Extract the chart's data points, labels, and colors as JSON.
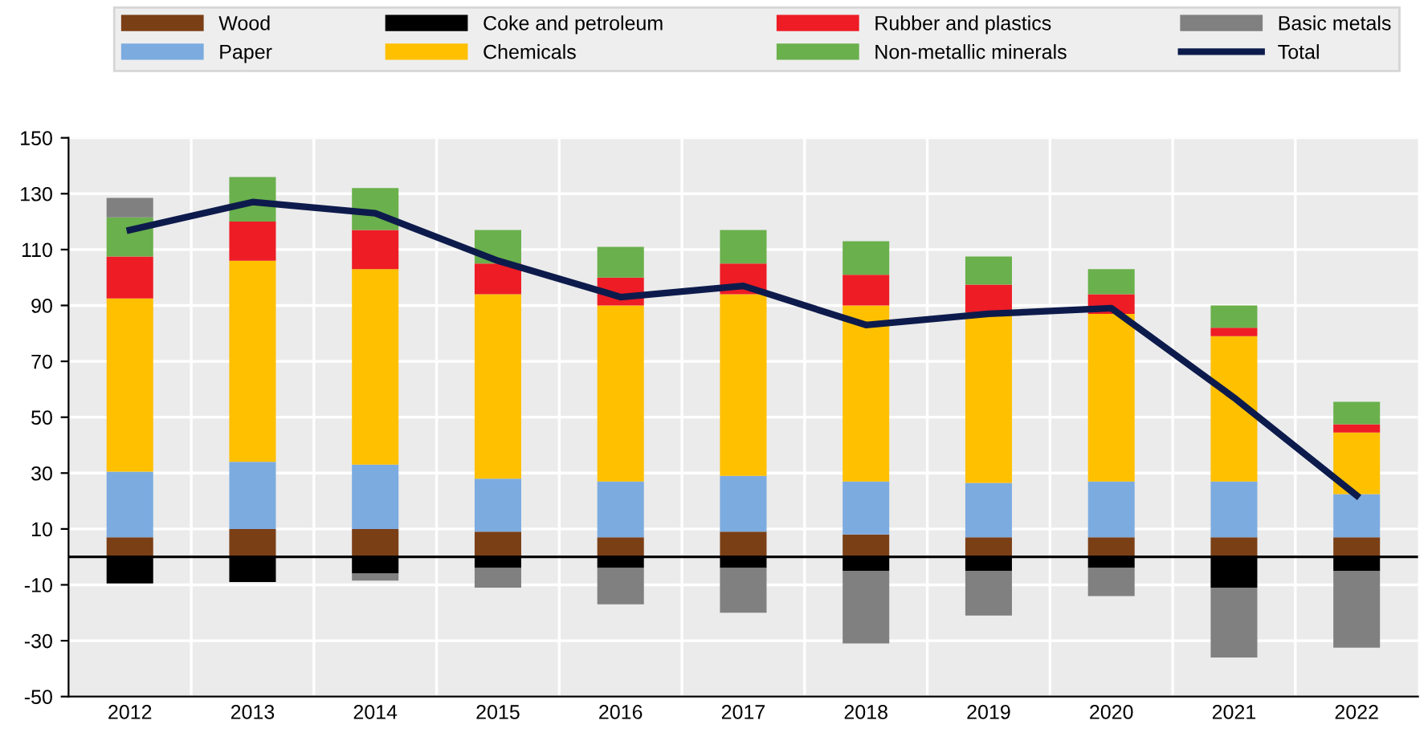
{
  "chart_data": {
    "type": "bar",
    "stacked": true,
    "categories": [
      "2012",
      "2013",
      "2014",
      "2015",
      "2016",
      "2017",
      "2018",
      "2019",
      "2020",
      "2021",
      "2022"
    ],
    "series": [
      {
        "name": "Wood",
        "color": "#7b3f16",
        "values": [
          7,
          10,
          10,
          9,
          7,
          9,
          8,
          7,
          7,
          7,
          7
        ]
      },
      {
        "name": "Paper",
        "color": "#7cabe0",
        "values": [
          23.5,
          24,
          23,
          19,
          20,
          20,
          19,
          19.5,
          20,
          20,
          15.5
        ]
      },
      {
        "name": "Coke and petroleum",
        "color": "#000000",
        "values": [
          -9.5,
          -9,
          -6,
          -4,
          -4,
          -4,
          -5,
          -5,
          -4,
          -11,
          -5
        ]
      },
      {
        "name": "Chemicals",
        "color": "#ffc000",
        "values": [
          62,
          72,
          70,
          66,
          63,
          65,
          63,
          61,
          60,
          52,
          22
        ]
      },
      {
        "name": "Rubber and plastics",
        "color": "#ee1c25",
        "values": [
          15,
          14,
          14,
          11,
          10,
          11,
          11,
          10,
          7,
          3,
          3
        ]
      },
      {
        "name": "Non-metallic minerals",
        "color": "#6ab04c",
        "values": [
          14,
          16,
          15,
          12,
          11,
          12,
          12,
          10,
          9,
          8,
          8
        ]
      },
      {
        "name": "Basic metals",
        "color": "#808080",
        "values": [
          7,
          null,
          -2.5,
          -7,
          -13,
          -16,
          -26,
          -16,
          -10,
          -25,
          -27.5
        ]
      },
      {
        "name": "Total",
        "type": "line",
        "color": "#0d1b4c",
        "values": [
          117,
          127,
          123,
          106,
          93,
          97,
          83,
          87,
          89,
          57,
          22
        ]
      }
    ],
    "ylim": [
      -50,
      150
    ],
    "yticks": [
      -50,
      -30,
      -10,
      10,
      30,
      50,
      70,
      90,
      110,
      130,
      150
    ],
    "ref_lines": [
      {
        "axis": "y",
        "value": 0,
        "color": "#000000"
      }
    ],
    "grid": true,
    "legend": "top"
  }
}
